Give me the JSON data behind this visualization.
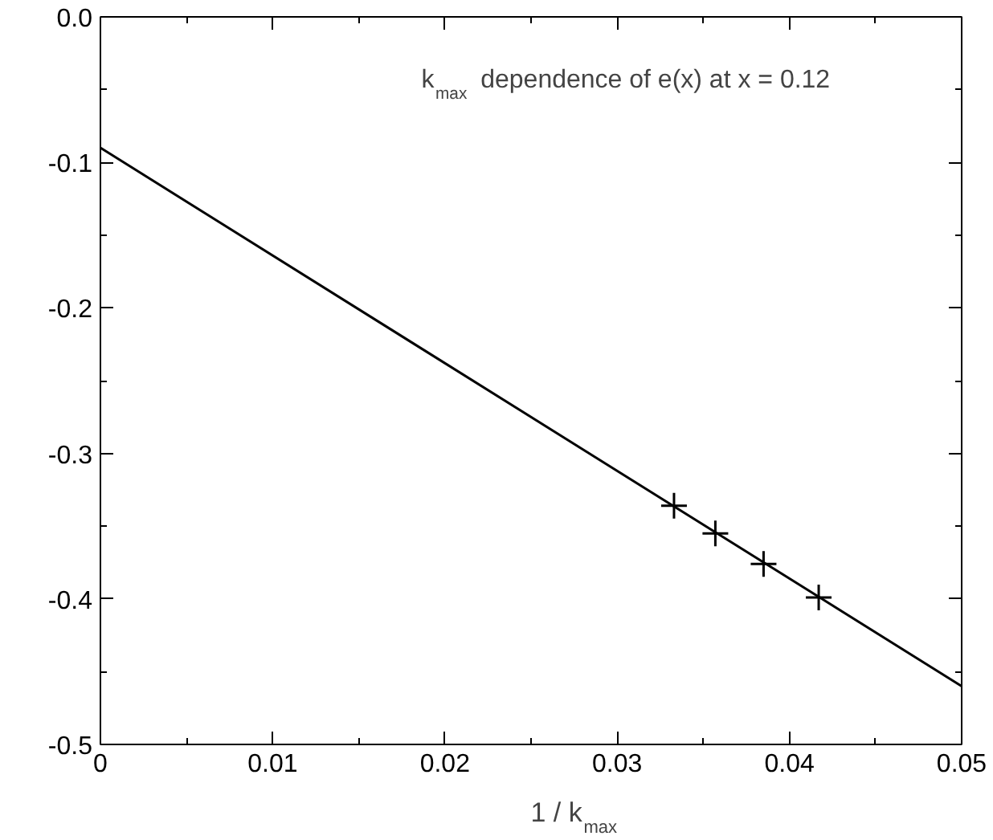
{
  "chart_data": {
    "type": "line",
    "xlabel": "1 / k$_{max}$",
    "annotations": [
      "k$_{max}$ dependence of e(x) at x = 0.12"
    ],
    "xlim": [
      0,
      0.05
    ],
    "ylim": [
      -0.5,
      0
    ],
    "xticks": [
      0,
      0.01,
      0.02,
      0.03,
      0.04,
      0.05
    ],
    "yticks": [
      -0.5,
      -0.4,
      -0.3,
      -0.2,
      -0.1,
      {
        "value": 0,
        "label": "0.0"
      }
    ],
    "grid": false,
    "series": [
      {
        "color": "#000000",
        "x": [
          0,
          0.05
        ],
        "values": [
          -0.09,
          -0.46
        ],
        "marker": "none"
      },
      {
        "type": "scatter",
        "color": "#000000",
        "x": [
          0.0333,
          0.0357,
          0.0385,
          0.0417
        ],
        "values": [
          -0.336,
          -0.355,
          -0.376,
          -0.399
        ],
        "marker": "cross"
      }
    ]
  }
}
